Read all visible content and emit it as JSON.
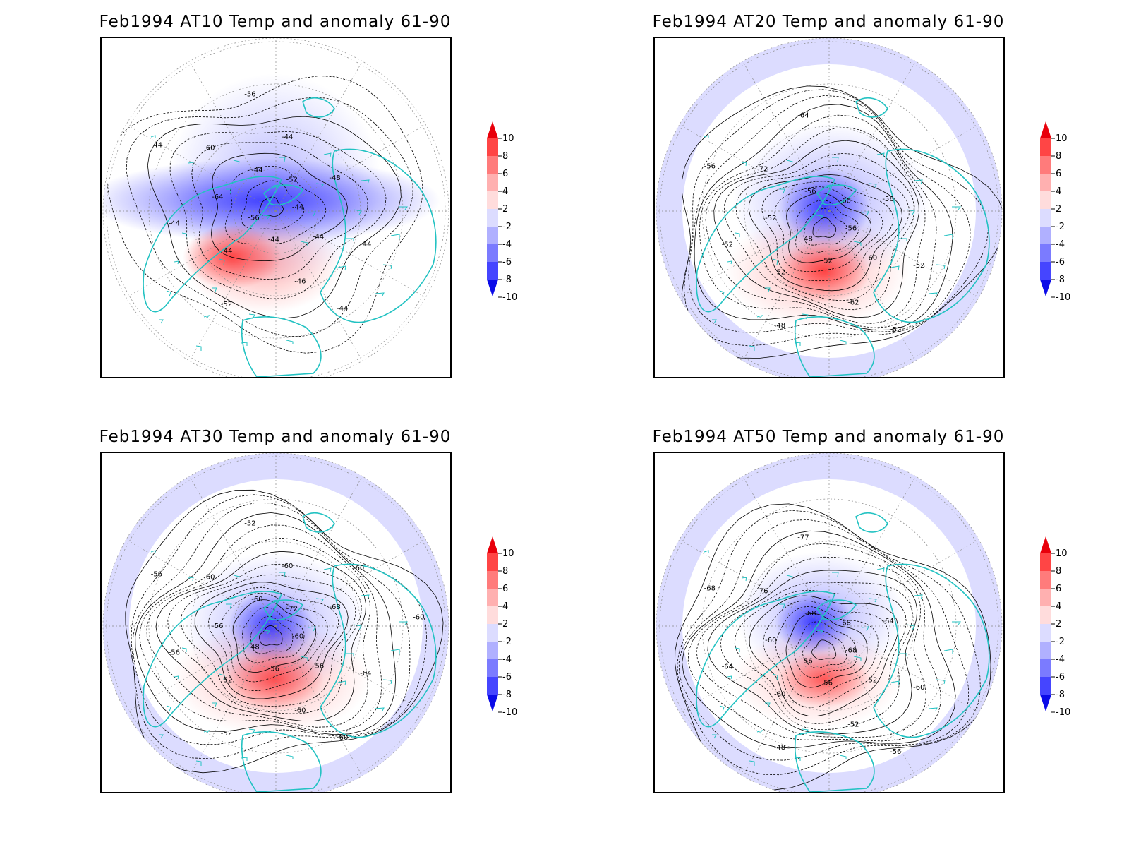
{
  "panels": [
    {
      "title": "Feb1994 AT10 Temp and anomaly 61-90",
      "contour_labels": [
        "-44",
        "-44",
        "-46",
        "-52",
        "-56",
        "-64",
        "-60",
        "-56",
        "-52",
        "-48",
        "-44",
        "-44",
        "-44",
        "-44",
        "-44",
        "-44",
        "-44",
        "-44"
      ]
    },
    {
      "title": "Feb1994 AT20 Temp and anomaly 61-90",
      "contour_labels": [
        "-56",
        "-60",
        "-62",
        "-48",
        "-48",
        "-52",
        "-72",
        "-64",
        "-60",
        "-56",
        "-52",
        "-52",
        "-52",
        "-52",
        "-52",
        "-56",
        "-56"
      ]
    },
    {
      "title": "Feb1994 AT30 Temp and anomaly 61-90",
      "contour_labels": [
        "-60",
        "-56",
        "-60",
        "-52",
        "-48",
        "-56",
        "-60",
        "-52",
        "-72",
        "-68",
        "-64",
        "-60",
        "-56",
        "-52",
        "-56",
        "-56",
        "-60",
        "-60",
        "-60",
        "-60"
      ]
    },
    {
      "title": "Feb1994 AT50 Temp and anomaly 61-90",
      "contour_labels": [
        "-68",
        "-52",
        "-52",
        "-48",
        "-56",
        "-60",
        "-76",
        "-77",
        "-68",
        "-64",
        "-60",
        "-56",
        "-56",
        "-60",
        "-64",
        "-68",
        "-68"
      ]
    }
  ],
  "colorbar": {
    "labels": [
      "10",
      "8",
      "6",
      "4",
      "2",
      "-2",
      "-4",
      "-6",
      "-8",
      "-10"
    ],
    "colors": [
      "#e8000b",
      "#ff4545",
      "#ff7b7b",
      "#ffb0b0",
      "#ffdcdc",
      "#dcdcff",
      "#b0b0ff",
      "#7b7bff",
      "#4545ff",
      "#0b0be8"
    ]
  },
  "colors": {
    "coastline": "#22c2c2",
    "negative": "#3c3cff",
    "positive": "#ff3c3c",
    "contour": "#000000"
  }
}
